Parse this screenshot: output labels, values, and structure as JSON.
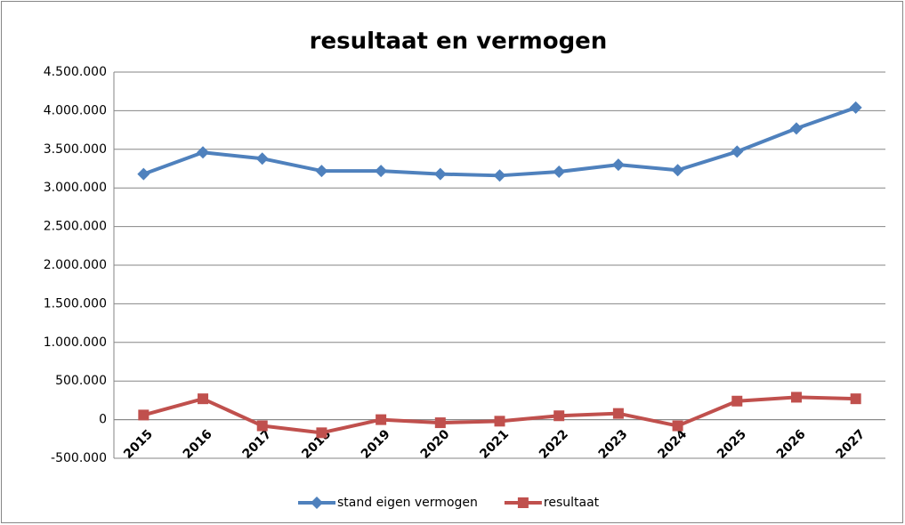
{
  "chart_data": {
    "type": "line",
    "title": "resultaat en vermogen",
    "categories": [
      "2015",
      "2016",
      "2017",
      "2018",
      "2019",
      "2020",
      "2021",
      "2022",
      "2023",
      "2024",
      "2025",
      "2026",
      "2027"
    ],
    "series": [
      {
        "name": "stand eigen vermogen",
        "color": "#4f81bd",
        "marker": "diamond",
        "values": [
          3180000,
          3460000,
          3380000,
          3220000,
          3220000,
          3180000,
          3160000,
          3210000,
          3300000,
          3230000,
          3470000,
          3770000,
          4040000
        ]
      },
      {
        "name": "resultaat",
        "color": "#c0504d",
        "marker": "square",
        "values": [
          60000,
          270000,
          -80000,
          -170000,
          0,
          -40000,
          -20000,
          50000,
          80000,
          -80000,
          240000,
          290000,
          270000
        ]
      }
    ],
    "ylim": [
      -500000,
      4500000
    ],
    "yticks": [
      {
        "value": -500000,
        "label": "-500.000"
      },
      0,
      {
        "value": 500000,
        "label": "500.000"
      },
      {
        "value": 1000000,
        "label": "1.000.000"
      },
      {
        "value": 1500000,
        "label": "1.500.000"
      },
      {
        "value": 2000000,
        "label": "2.000.000"
      },
      {
        "value": 2500000,
        "label": "2.500.000"
      },
      {
        "value": 3000000,
        "label": "3.000.000"
      },
      {
        "value": 3500000,
        "label": "3.500.000"
      },
      {
        "value": 4000000,
        "label": "4.000.000"
      },
      {
        "value": 4500000,
        "label": "4.500.000"
      }
    ],
    "grid": true,
    "legend": "bottom"
  }
}
